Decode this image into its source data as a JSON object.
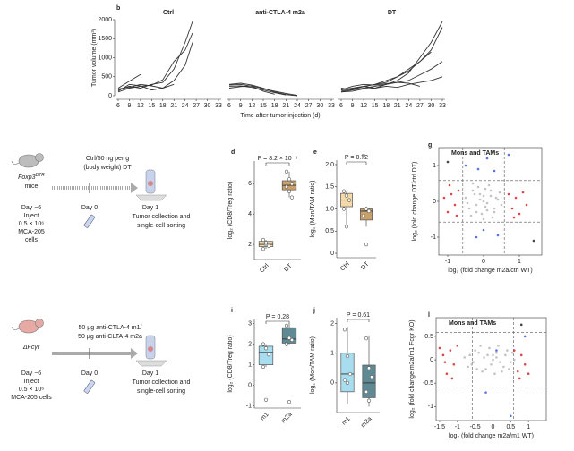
{
  "chart_data": [
    {
      "type": "line",
      "panel": "b",
      "title": "Ctrl",
      "y_label": "Tumor volume (mm³)",
      "xlim": [
        6,
        33
      ],
      "ylim": [
        0,
        2000
      ],
      "xticks": [
        6,
        9,
        12,
        15,
        18,
        21,
        24,
        27,
        30,
        33
      ],
      "yticks": [
        0,
        500,
        1000,
        1500,
        2000
      ],
      "color": "#333333",
      "series": [
        {
          "x": [
            6,
            9,
            12
          ],
          "values": [
            200,
            380,
            560
          ]
        },
        {
          "x": [
            6,
            9,
            12,
            15,
            18,
            21,
            24,
            26
          ],
          "values": [
            150,
            250,
            200,
            300,
            350,
            700,
            1400,
            1950
          ]
        },
        {
          "x": [
            6,
            9,
            12,
            15,
            18,
            21,
            24,
            26
          ],
          "values": [
            100,
            200,
            250,
            280,
            420,
            900,
            1200,
            1650
          ]
        },
        {
          "x": [
            6,
            9,
            12,
            15,
            18,
            21,
            24,
            26
          ],
          "values": [
            120,
            300,
            260,
            150,
            200,
            400,
            800,
            1400
          ]
        },
        {
          "x": [
            6,
            9,
            12,
            15,
            18,
            21
          ],
          "values": [
            180,
            220,
            300,
            260,
            200,
            300
          ]
        }
      ]
    },
    {
      "type": "line",
      "title": "anti-CTLA-4 m2a",
      "x_label": "Time after tumor injection (d)",
      "xlim": [
        6,
        33
      ],
      "ylim": [
        0,
        2000
      ],
      "xticks": [
        6,
        9,
        12,
        15,
        18,
        21,
        24,
        27,
        30,
        33
      ],
      "color": "#333333",
      "series": [
        {
          "x": [
            6,
            9,
            12,
            15,
            18,
            21,
            24
          ],
          "values": [
            300,
            330,
            280,
            200,
            100,
            30,
            0
          ]
        },
        {
          "x": [
            6,
            9,
            12,
            15,
            18,
            21
          ],
          "values": [
            250,
            260,
            220,
            150,
            80,
            20
          ]
        },
        {
          "x": [
            6,
            9,
            12,
            15,
            18,
            21,
            24
          ],
          "values": [
            200,
            240,
            260,
            180,
            120,
            60,
            10
          ]
        },
        {
          "x": [
            6,
            9,
            12,
            15,
            18
          ],
          "values": [
            280,
            300,
            250,
            120,
            40
          ]
        }
      ]
    },
    {
      "type": "line",
      "title": "DT",
      "xlim": [
        6,
        33
      ],
      "ylim": [
        0,
        2000
      ],
      "xticks": [
        6,
        9,
        12,
        15,
        18,
        21,
        24,
        27,
        30,
        33
      ],
      "color": "#333333",
      "series": [
        {
          "x": [
            6,
            9,
            12,
            15,
            18,
            21,
            24,
            27,
            30,
            33
          ],
          "values": [
            150,
            200,
            250,
            300,
            400,
            500,
            700,
            900,
            1200,
            1800
          ]
        },
        {
          "x": [
            6,
            9,
            12,
            15,
            18,
            21,
            24,
            27,
            30,
            33
          ],
          "values": [
            100,
            150,
            200,
            250,
            300,
            400,
            600,
            1000,
            1400,
            1950
          ]
        },
        {
          "x": [
            6,
            9,
            12,
            15,
            18,
            21,
            24,
            27,
            30
          ],
          "values": [
            120,
            180,
            240,
            300,
            350,
            500,
            650,
            900,
            1150
          ]
        },
        {
          "x": [
            6,
            9,
            12,
            15,
            18,
            21,
            24,
            27,
            30,
            33
          ],
          "values": [
            200,
            150,
            250,
            200,
            300,
            350,
            400,
            550,
            700,
            900
          ]
        },
        {
          "x": [
            6,
            9,
            12,
            15,
            18,
            21,
            24,
            27,
            30,
            33
          ],
          "values": [
            100,
            120,
            180,
            200,
            250,
            220,
            300,
            350,
            400,
            500
          ]
        },
        {
          "x": [
            6,
            9,
            12,
            15,
            18,
            21,
            24,
            27
          ],
          "values": [
            150,
            250,
            300,
            280,
            320,
            350,
            330,
            250
          ]
        }
      ]
    },
    {
      "type": "box",
      "panel": "d",
      "y_label": "log₂ (CD8/Treg ratio)",
      "annotation": "P = 8.2 × 10⁻⁵",
      "categories": [
        "Ctrl",
        "DT"
      ],
      "colors": [
        "#f5d9a8",
        "#c9a06a"
      ],
      "ylim": [
        1,
        7.5
      ],
      "yticks": [
        2,
        4,
        6
      ],
      "boxes": [
        {
          "whislo": 1.7,
          "q1": 1.85,
          "median": 2.0,
          "q3": 2.2,
          "whishi": 2.3
        },
        {
          "whislo": 5.1,
          "q1": 5.6,
          "median": 5.9,
          "q3": 6.2,
          "whishi": 6.8
        }
      ],
      "points": [
        [
          2.3,
          2.0,
          1.9,
          1.7,
          2.1
        ],
        [
          6.8,
          6.3,
          6.0,
          5.8,
          5.5,
          5.1
        ]
      ]
    },
    {
      "type": "box",
      "panel": "e",
      "y_label": "log₂ (Mon/TAM ratio)",
      "annotation": "P = 0.72",
      "categories": [
        "Ctrl",
        "DT"
      ],
      "colors": [
        "#f5d9a8",
        "#c9a06a"
      ],
      "ylim": [
        -0.1,
        2.1
      ],
      "yticks": [
        0,
        0.5,
        {
          "value": 1,
          "label": "1.0"
        },
        1.5,
        {
          "value": 2,
          "label": "2.0"
        }
      ],
      "boxes": [
        {
          "whislo": 0.6,
          "q1": 1.05,
          "median": 1.2,
          "q3": 1.35,
          "whishi": 1.4
        },
        {
          "whislo": 0.6,
          "q1": 0.75,
          "median": 0.95,
          "q3": 1.0,
          "whishi": 1.05
        }
      ],
      "points": [
        [
          1.4,
          1.3,
          1.2,
          1.0,
          0.6
        ],
        [
          2.2,
          1.0,
          0.95,
          0.85,
          0.2
        ]
      ]
    },
    {
      "type": "scatter",
      "panel": "g",
      "title": "Mons and TAMs",
      "x_label": "log₂ (fold change m2a/ctrl WT)",
      "y_label": "log₂ (fold change DT/ctrl DT)",
      "xlim": [
        -1.25,
        1.625
      ],
      "ylim": [
        -1.5,
        1.5
      ],
      "xticks": [
        -1,
        0,
        1
      ],
      "yticks": [
        -1,
        0,
        1
      ],
      "thresholds": {
        "x": [
          -0.58,
          0.58
        ],
        "y": [
          -0.58,
          0.58
        ]
      },
      "series": [
        {
          "color": "#b8b8b8",
          "x": [
            -0.5,
            -0.4,
            -0.3,
            -0.2,
            -0.1,
            0,
            0.1,
            0.2,
            0.3,
            0.4,
            0.5,
            -0.35,
            -0.15,
            0.05,
            0.25,
            0.45,
            -0.45,
            -0.25,
            -0.05,
            0.15,
            0.35,
            -0.3,
            0,
            0.3,
            -0.1,
            0.1,
            -0.2,
            0.2,
            0,
            0.05
          ],
          "values": [
            0.1,
            -0.2,
            0.3,
            -0.1,
            0.2,
            0,
            -0.25,
            0.15,
            -0.3,
            0.05,
            -0.1,
            -0.4,
            0.4,
            0.35,
            -0.45,
            0.25,
            -0.05,
            0.2,
            -0.35,
            0.45,
            0.1,
            0.5,
            -0.5,
            -0.2,
            0.05,
            -0.05,
            -0.3,
            0.3,
            0.15,
            -0.15
          ]
        },
        {
          "color": "#d62728",
          "x": [
            -0.7,
            -0.8,
            -0.9,
            -1.0,
            -1.1,
            -0.75,
            -0.95,
            0.7,
            0.8,
            0.9,
            1.0,
            1.1,
            1.2,
            0.85
          ],
          "values": [
            0.3,
            -0.1,
            0.2,
            -0.3,
            0.1,
            -0.4,
            0.45,
            0.2,
            -0.2,
            0.1,
            -0.35,
            0.25,
            -0.1,
            -0.45
          ]
        },
        {
          "color": "#3b5bdb",
          "x": [
            -0.5,
            0.1,
            -0.15,
            0.3,
            0,
            -0.2,
            0.4,
            0.7
          ],
          "values": [
            1.0,
            1.2,
            0.9,
            0.85,
            -0.8,
            -1.0,
            -0.95,
            1.3
          ]
        },
        {
          "color": "#222222",
          "x": [
            -1.0,
            1.4
          ],
          "values": [
            1.1,
            -1.1
          ]
        }
      ]
    },
    {
      "type": "box",
      "panel": "i",
      "y_label": "log₂ (CD8/Treg ratio)",
      "annotation": "P = 0.28",
      "categories": [
        "m1",
        "m2a"
      ],
      "colors": [
        "#a8ddef",
        "#5f8a94"
      ],
      "ylim": [
        -1.1,
        3.2
      ],
      "yticks": [
        -1,
        0,
        1,
        2,
        3
      ],
      "boxes": [
        {
          "whislo": 0.9,
          "q1": 1.0,
          "median": 1.6,
          "q3": 1.9,
          "whishi": 2.0
        },
        {
          "whislo": 2.0,
          "q1": 2.05,
          "median": 2.25,
          "q3": 2.8,
          "whishi": 3.0
        }
      ],
      "points": [
        [
          2.0,
          1.8,
          1.5,
          0.9,
          -0.7
        ],
        [
          2.9,
          2.3,
          2.2,
          2.0,
          -0.8
        ]
      ]
    },
    {
      "type": "box",
      "panel": "j",
      "y_label": "log₂ (Mon/TAM ratio)",
      "annotation": "P = 0.61",
      "categories": [
        "m1",
        "m2a"
      ],
      "colors": [
        "#a8ddef",
        "#5f8a94"
      ],
      "ylim": [
        -1,
        2.2
      ],
      "yticks": [
        0,
        1,
        2
      ],
      "boxes": [
        {
          "whislo": -0.7,
          "q1": -0.3,
          "median": 0.3,
          "q3": 1.0,
          "whishi": 1.9
        },
        {
          "whislo": -0.8,
          "q1": -0.5,
          "median": 0,
          "q3": 0.6,
          "whishi": 1.6
        }
      ],
      "points": [
        [
          1.8,
          0.9,
          0.3,
          0.1,
          0.0
        ],
        [
          1.5,
          0.5,
          0.2,
          -0.3,
          -0.6
        ]
      ]
    },
    {
      "type": "scatter",
      "panel": "l",
      "title": "Mons and TAMs",
      "x_label": "log₂ (fold change m2a/m1 WT)",
      "y_label": "log₂ (fold change m2a/m1 Fcgr KO)",
      "xlim": [
        -1.6,
        1.5
      ],
      "ylim": [
        -1.3,
        0.9
      ],
      "xticks": [
        -1.5,
        -1,
        -0.5,
        0,
        0.5,
        1
      ],
      "yticks": [
        -1,
        -0.5,
        0,
        0.5
      ],
      "thresholds": {
        "x": [
          -0.58,
          0.58
        ],
        "y": [
          -0.58,
          0.58
        ]
      },
      "series": [
        {
          "color": "#b8b8b8",
          "x": [
            -0.8,
            -0.6,
            -0.4,
            -0.2,
            0,
            0.2,
            0.4,
            0.6,
            -0.7,
            -0.5,
            -0.3,
            -0.1,
            0.1,
            0.3,
            0.5,
            -0.65,
            -0.45,
            -0.25,
            -0.05,
            0.15,
            0.35,
            0.55,
            -0.35,
            0.05,
            0.25,
            -0.15,
            0.45,
            -0.55,
            0,
            0.1
          ],
          "values": [
            0.05,
            -0.1,
            0.15,
            -0.2,
            0.1,
            -0.05,
            0.2,
            0,
            -0.15,
            0.2,
            -0.25,
            0.25,
            0.15,
            -0.15,
            -0.05,
            0.1,
            -0.2,
            0.05,
            -0.1,
            0.3,
            0.1,
            0.15,
            0.3,
            -0.3,
            -0.25,
            0.1,
            -0.2,
            -0.05,
            0,
            0.05
          ]
        },
        {
          "color": "#d62728",
          "x": [
            -1.0,
            -1.1,
            -1.2,
            -1.3,
            -1.4,
            -1.5,
            -1.15,
            -1.35,
            0.6,
            0.7,
            0.8,
            0.9,
            1.0,
            0.75
          ],
          "values": [
            0.3,
            -0.1,
            0.2,
            -0.3,
            0.1,
            0.25,
            -0.4,
            -0.05,
            0.2,
            -0.25,
            0.1,
            -0.1,
            -0.3,
            -0.4
          ]
        },
        {
          "color": "#3b5bdb",
          "x": [
            0.5,
            0.1,
            0.9,
            -0.2
          ],
          "values": [
            -1.2,
            0.2,
            0.5,
            -0.7
          ]
        },
        {
          "color": "#222222",
          "x": [
            0.8
          ],
          "values": [
            0.75
          ]
        }
      ]
    }
  ],
  "schematics": [
    {
      "mouse": "Foxp3",
      "mouse_sup": "DTR",
      "mouse_suffix": "mice",
      "day_pre": "Day −6",
      "inject": [
        "Inject",
        "0.5 × 10⁶",
        "MCA-205",
        "cells"
      ],
      "treatment": [
        "Ctrl/50 ng per g",
        "(body weight) DT"
      ],
      "day0": "Day 0",
      "day1": "Day 1",
      "collection": [
        "Tumor collection and",
        "single-cell sorting"
      ]
    },
    {
      "mouse": "ΔFcγr",
      "day_pre": "Day −6",
      "inject": [
        "Inject",
        "0.5 × 10⁶",
        "MCA-205 cells"
      ],
      "treatment": [
        "50 µg anti-CTLA-4 m1/",
        "50 µg anti-CLTA-4 m2a"
      ],
      "day0": "Day 0",
      "day1": "Day 1",
      "collection": [
        "Tumor collection and",
        "single-cell sorting"
      ]
    }
  ]
}
